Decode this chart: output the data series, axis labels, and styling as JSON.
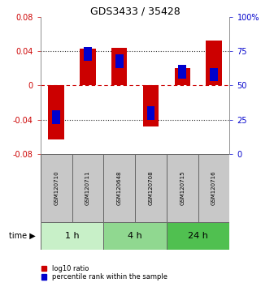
{
  "title": "GDS3433 / 35428",
  "samples": [
    "GSM120710",
    "GSM120711",
    "GSM120648",
    "GSM120708",
    "GSM120715",
    "GSM120716"
  ],
  "log10_ratio": [
    -0.063,
    0.043,
    0.044,
    -0.048,
    0.02,
    0.053
  ],
  "percentile_rank": [
    27,
    73,
    68,
    30,
    60,
    58
  ],
  "ylim_left": [
    -0.08,
    0.08
  ],
  "ylim_right": [
    0,
    100
  ],
  "yticks_left": [
    -0.08,
    -0.04,
    0,
    0.04,
    0.08
  ],
  "yticks_right": [
    0,
    25,
    50,
    75,
    100
  ],
  "ytick_labels_left": [
    "-0.08",
    "-0.04",
    "0",
    "0.04",
    "0.08"
  ],
  "ytick_labels_right": [
    "0",
    "25",
    "50",
    "75",
    "100%"
  ],
  "time_groups": [
    {
      "label": "1 h",
      "start": 0,
      "end": 2,
      "color": "#c8f0c8"
    },
    {
      "label": "4 h",
      "start": 2,
      "end": 4,
      "color": "#90d890"
    },
    {
      "label": "24 h",
      "start": 4,
      "end": 6,
      "color": "#50c050"
    }
  ],
  "bar_color_red": "#cc0000",
  "bar_color_blue": "#0000cc",
  "bar_width": 0.5,
  "blue_bar_width": 0.25,
  "blue_bar_height": 0.008,
  "sample_box_color": "#c8c8c8",
  "sample_box_edge": "#666666",
  "hline_zero_color": "#cc0000",
  "hline_dotted_color": "#333333",
  "legend_red_label": "log10 ratio",
  "legend_blue_label": "percentile rank within the sample",
  "title_fontsize": 9,
  "tick_fontsize": 7,
  "sample_fontsize": 5,
  "time_fontsize": 8,
  "legend_fontsize": 6
}
